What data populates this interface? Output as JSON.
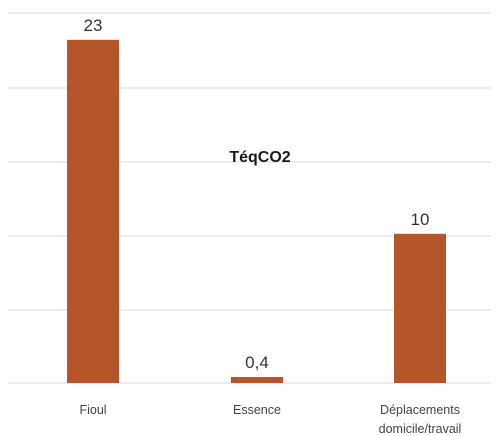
{
  "chart_data": {
    "type": "bar",
    "title": "TéqCO2",
    "categories": [
      [
        "Fioul"
      ],
      [
        "Essence"
      ],
      [
        "Déplacements",
        "domicile/travail"
      ]
    ],
    "values": [
      23,
      0.4,
      10
    ],
    "data_labels": [
      "23",
      "0,4",
      "10"
    ],
    "ylim": [
      0,
      25
    ],
    "grid": true,
    "legend": "none",
    "xlabel": "",
    "ylabel": "",
    "colors": {
      "bar": "#b5562a",
      "grid": "#d9d9d9"
    }
  }
}
